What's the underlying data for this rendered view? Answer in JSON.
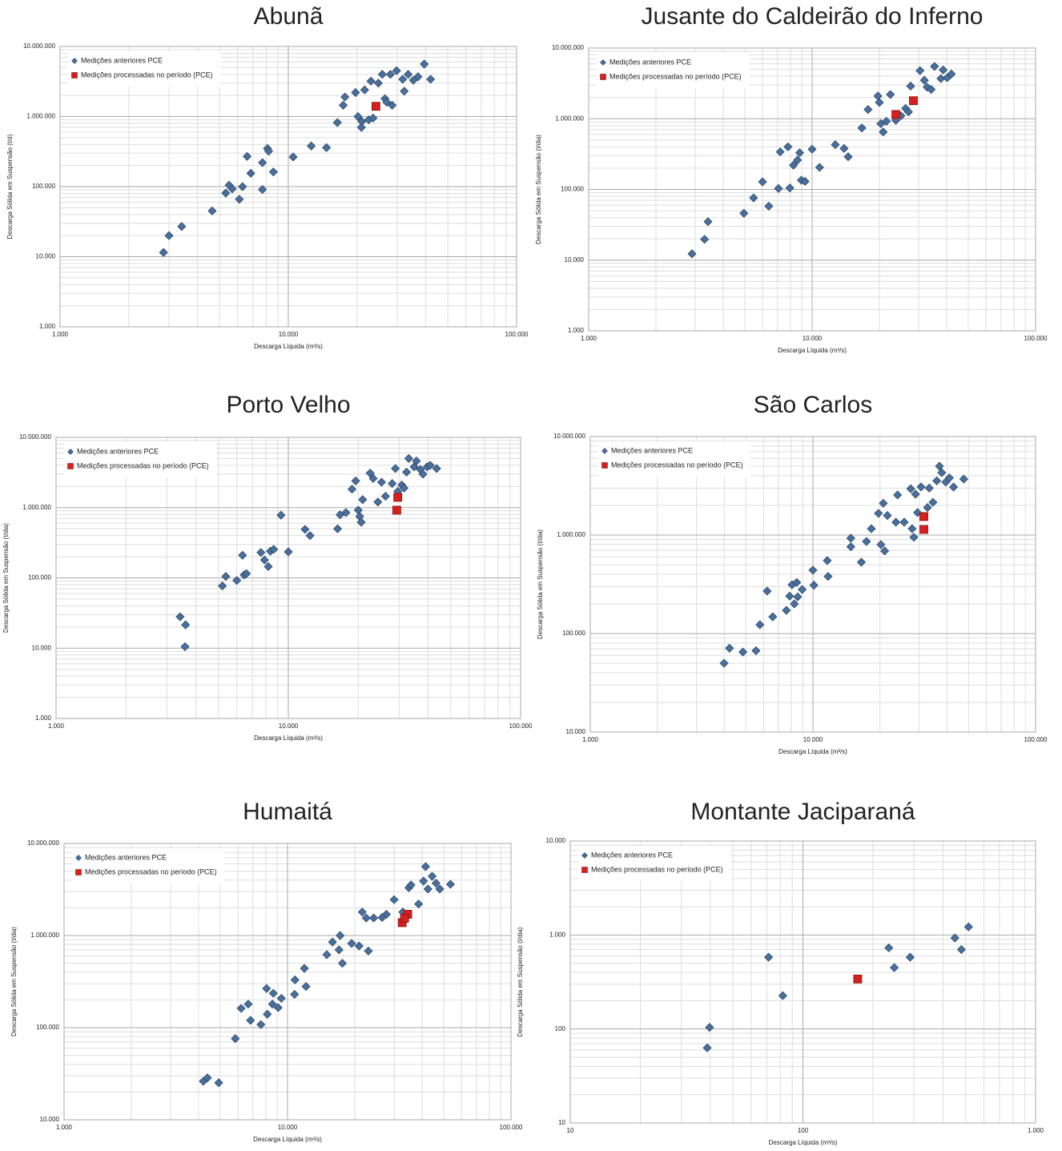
{
  "chart_data": [
    {
      "type": "scatter",
      "title": "Abunã",
      "x_label": "Descarga Líquida (m³/s)",
      "y_label": "Descarga Sólida em Suspensão (t/d)",
      "log_x": true,
      "log_y": true,
      "grid": true,
      "legend": "upper left",
      "xlim": [
        1000,
        100000
      ],
      "ylim": [
        1000,
        10000000
      ],
      "xticks": [
        {
          "value": 1000,
          "label": "1.000"
        },
        {
          "value": 10000,
          "label": "10.000"
        },
        {
          "value": 100000,
          "label": "100.000"
        }
      ],
      "yticks": [
        {
          "value": 1000,
          "label": "1.000"
        },
        {
          "value": 10000,
          "label": "10.000"
        },
        {
          "value": 100000,
          "label": "100.000"
        },
        {
          "value": 1000000,
          "label": "1.000.000"
        },
        {
          "value": 10000000,
          "label": "10.000.000"
        }
      ],
      "series": [
        {
          "name": "Medições anteriores PCE",
          "color": "#4a6f9a",
          "marker": "diamond",
          "x": [
            2840,
            3000,
            3410,
            4640,
            5320,
            5500,
            5680,
            6100,
            6300,
            6600,
            6850,
            7700,
            7700,
            8100,
            8200,
            8600,
            10500,
            12600,
            14700,
            16400,
            17400,
            17700,
            19700,
            20200,
            21000,
            20900,
            21600,
            22500,
            23000,
            23500,
            24800,
            25800,
            26500,
            27000,
            28000,
            28500,
            29800,
            31700,
            32200,
            33500,
            35300,
            37000,
            39400,
            42000
          ],
          "y": [
            11500,
            20000,
            27000,
            45000,
            81000,
            105000,
            93000,
            66000,
            100000,
            270000,
            155000,
            91000,
            220000,
            350000,
            320000,
            162000,
            265000,
            380000,
            360000,
            820000,
            1450000,
            1900000,
            2200000,
            1000000,
            850000,
            700000,
            2400000,
            900000,
            3200000,
            950000,
            3000000,
            4000000,
            1800000,
            1600000,
            4000000,
            1450000,
            4500000,
            3400000,
            2300000,
            4000000,
            3300000,
            3700000,
            5600000,
            3400000
          ]
        },
        {
          "name": "Medições processadas no período (PCE)",
          "color": "#d42020",
          "marker": "square",
          "x": [
            24200
          ],
          "y": [
            1400000
          ]
        }
      ]
    },
    {
      "type": "scatter",
      "title": "Jusante do Caldeirão do Inferno",
      "x_label": "Descarga Líquida (m³/s)",
      "y_label": "Descarga Sólida em Suspensão (t/dia)",
      "log_x": true,
      "log_y": true,
      "grid": true,
      "legend": "upper left",
      "xlim": [
        1000,
        100000
      ],
      "ylim": [
        1000,
        10000000
      ],
      "xticks": [
        {
          "value": 1000,
          "label": "1.000"
        },
        {
          "value": 10000,
          "label": "10.000"
        },
        {
          "value": 100000,
          "label": "100.000"
        }
      ],
      "yticks": [
        {
          "value": 1000,
          "label": "1.000"
        },
        {
          "value": 10000,
          "label": "10.000"
        },
        {
          "value": 100000,
          "label": "100.000"
        },
        {
          "value": 1000000,
          "label": "1.000.000"
        },
        {
          "value": 10000000,
          "label": "10.000.000"
        }
      ],
      "series": [
        {
          "name": "Medições anteriores PCE",
          "color": "#4a6f9a",
          "marker": "diamond",
          "x": [
            2900,
            3300,
            3420,
            4950,
            5470,
            6000,
            6400,
            7070,
            7200,
            7800,
            7950,
            8250,
            8600,
            8800,
            8950,
            9300,
            10000,
            10800,
            12700,
            13900,
            14500,
            16700,
            17800,
            19700,
            20000,
            20300,
            20800,
            21500,
            22400,
            23700,
            25000,
            26200,
            27000,
            27600,
            30400,
            31800,
            32700,
            34100,
            35300,
            37700,
            38600,
            40200,
            42000
          ],
          "y": [
            12300,
            19700,
            35000,
            46000,
            76000,
            128000,
            58000,
            103000,
            340000,
            400000,
            105000,
            220000,
            260000,
            330000,
            135000,
            130000,
            370000,
            205000,
            430000,
            380000,
            290000,
            740000,
            1350000,
            2100000,
            1700000,
            850000,
            650000,
            920000,
            2200000,
            950000,
            1100000,
            1400000,
            1250000,
            2900000,
            4800000,
            3500000,
            2800000,
            2600000,
            5500000,
            3700000,
            4900000,
            3800000,
            4300000
          ]
        },
        {
          "name": "Medições processadas no período (PCE)",
          "color": "#d42020",
          "marker": "square",
          "x": [
            23700,
            28400
          ],
          "y": [
            1150000,
            1800000
          ]
        }
      ]
    },
    {
      "type": "scatter",
      "title": "Porto Velho",
      "x_label": "Descarga Líquida (m³/s)",
      "y_label": "Descarga Sólida em Suspensão (t/dia)",
      "log_x": true,
      "log_y": true,
      "grid": true,
      "legend": "upper left",
      "xlim": [
        1000,
        100000
      ],
      "ylim": [
        1000,
        10000000
      ],
      "xticks": [
        {
          "value": 1000,
          "label": "1.000"
        },
        {
          "value": 10000,
          "label": "10.000"
        },
        {
          "value": 100000,
          "label": "100.000"
        }
      ],
      "yticks": [
        {
          "value": 1000,
          "label": "1.000"
        },
        {
          "value": 10000,
          "label": "10.000"
        },
        {
          "value": 100000,
          "label": "100.000"
        },
        {
          "value": 1000000,
          "label": "1.000.000"
        },
        {
          "value": 10000000,
          "label": "10.000.000"
        }
      ],
      "series": [
        {
          "name": "Medições anteriores PCE",
          "color": "#4a6f9a",
          "marker": "diamond",
          "x": [
            3420,
            3610,
            3590,
            5200,
            5380,
            6000,
            6350,
            6450,
            6600,
            7620,
            7900,
            8200,
            8370,
            8650,
            9300,
            10000,
            11800,
            12400,
            16300,
            16700,
            17700,
            18800,
            19500,
            20000,
            20300,
            20600,
            20900,
            22500,
            23200,
            24300,
            25200,
            26200,
            28000,
            28900,
            29600,
            30800,
            31500,
            32300,
            33000,
            34800,
            35600,
            37000,
            38000,
            39600,
            40800,
            43500
          ],
          "y": [
            28000,
            21500,
            10500,
            77000,
            105000,
            92000,
            210000,
            110000,
            115000,
            230000,
            180000,
            145000,
            240000,
            255000,
            780000,
            235000,
            490000,
            400000,
            500000,
            790000,
            850000,
            1830000,
            2400000,
            920000,
            750000,
            620000,
            1300000,
            3100000,
            2600000,
            1200000,
            2300000,
            1450000,
            2200000,
            3600000,
            1700000,
            2100000,
            1900000,
            3200000,
            5000000,
            3800000,
            4600000,
            3500000,
            3000000,
            3800000,
            4000000,
            3600000
          ]
        },
        {
          "name": "Medições processadas no período (PCE)",
          "color": "#d42020",
          "marker": "square",
          "x": [
            29600,
            29300
          ],
          "y": [
            1400000,
            920000
          ]
        }
      ]
    },
    {
      "type": "scatter",
      "title": "São Carlos",
      "x_label": "Descarga Líquida (m³/s)",
      "y_label": "Descarga Sólida em Suspensão (t/dia)",
      "log_x": true,
      "log_y": true,
      "grid": true,
      "legend": "upper left",
      "xlim": [
        1000,
        100000
      ],
      "ylim": [
        10000,
        10000000
      ],
      "xticks": [
        {
          "value": 1000,
          "label": "1.000"
        },
        {
          "value": 10000,
          "label": "10.000"
        },
        {
          "value": 100000,
          "label": "100.000"
        }
      ],
      "yticks": [
        {
          "value": 10000,
          "label": "10.000"
        },
        {
          "value": 100000,
          "label": "100.000"
        },
        {
          "value": 1000000,
          "label": "1.000.000"
        },
        {
          "value": 10000000,
          "label": "10.000.000"
        }
      ],
      "series": [
        {
          "name": "Medições anteriores PCE",
          "color": "#4a6f9a",
          "marker": "diamond",
          "x": [
            3990,
            4220,
            4850,
            5550,
            5780,
            6230,
            6600,
            7600,
            7860,
            8060,
            8250,
            8540,
            8460,
            8950,
            10000,
            10100,
            11600,
            11700,
            14800,
            14800,
            16500,
            17400,
            18300,
            19700,
            20200,
            20700,
            21000,
            21600,
            23600,
            24000,
            25700,
            27500,
            27900,
            28400,
            28900,
            29500,
            30600,
            32700,
            33300,
            34600,
            36000,
            37000,
            37900,
            39500,
            41000,
            42800,
            47600
          ],
          "y": [
            50000,
            71000,
            65000,
            67000,
            123000,
            270000,
            148000,
            172000,
            240000,
            313000,
            200000,
            236000,
            330000,
            280000,
            440000,
            310000,
            550000,
            380000,
            930000,
            760000,
            530000,
            860000,
            1160000,
            1660000,
            800000,
            2100000,
            690000,
            1580000,
            1350000,
            2550000,
            1350000,
            2950000,
            1160000,
            950000,
            2600000,
            1690000,
            3080000,
            1900000,
            3000000,
            2150000,
            3550000,
            5000000,
            4300000,
            3450000,
            3800000,
            3070000,
            3700000
          ]
        },
        {
          "name": "Medições processadas no período (PCE)",
          "color": "#d42020",
          "marker": "square",
          "x": [
            31500,
            31500
          ],
          "y": [
            1540000,
            1140000
          ]
        }
      ]
    },
    {
      "type": "scatter",
      "title": "Humaitá",
      "x_label": "Descarga Líquida (m³/s)",
      "y_label": "Descarga Sólida em Suspensão (t/dia)",
      "log_x": true,
      "log_y": true,
      "grid": true,
      "legend": "upper left",
      "xlim": [
        1000,
        100000
      ],
      "ylim": [
        10000,
        10000000
      ],
      "xticks": [
        {
          "value": 1000,
          "label": "1.000"
        },
        {
          "value": 10000,
          "label": "10.000"
        },
        {
          "value": 100000,
          "label": "100.000"
        }
      ],
      "yticks": [
        {
          "value": 10000,
          "label": "10.000"
        },
        {
          "value": 100000,
          "label": "100.000"
        },
        {
          "value": 1000000,
          "label": "1.000.000"
        },
        {
          "value": 10000000,
          "label": "10.000.000"
        }
      ],
      "series": [
        {
          "name": "Medições anteriores PCE",
          "color": "#4a6f9a",
          "marker": "diamond",
          "x": [
            4200,
            4380,
            4920,
            5840,
            6200,
            6670,
            6830,
            7600,
            8060,
            8120,
            8560,
            8640,
            9080,
            9380,
            10750,
            10800,
            11900,
            12100,
            14990,
            15900,
            17000,
            17200,
            17600,
            19350,
            20900,
            21600,
            22500,
            23000,
            24300,
            26500,
            27700,
            30000,
            32800,
            34900,
            35700,
            38600,
            40600,
            41500,
            42500,
            44400,
            46200,
            48000,
            53600
          ],
          "y": [
            26200,
            28500,
            25200,
            76000,
            162000,
            180000,
            120000,
            108000,
            266000,
            140000,
            180000,
            236000,
            165000,
            208000,
            230000,
            330000,
            440000,
            280000,
            620000,
            850000,
            700000,
            1000000,
            500000,
            820000,
            770000,
            1800000,
            1550000,
            680000,
            1550000,
            1570000,
            1700000,
            2450000,
            1800000,
            3300000,
            3540000,
            2200000,
            3900000,
            5600000,
            3200000,
            4400000,
            3700000,
            3200000,
            3600000
          ]
        },
        {
          "name": "Medições processadas no período (PCE)",
          "color": "#d42020",
          "marker": "square",
          "x": [
            32600,
            34500,
            33400
          ],
          "y": [
            1380000,
            1700000,
            1540000
          ]
        }
      ]
    },
    {
      "type": "scatter",
      "title": "Montante Jaciparaná",
      "x_label": "Descarga Líquida (m³/s)",
      "y_label": "Descarga Sólida em Suspensão (t/dia)",
      "log_x": true,
      "log_y": true,
      "grid": true,
      "legend": "upper left",
      "xlim": [
        10,
        1000
      ],
      "ylim": [
        10,
        10000
      ],
      "xticks": [
        10,
        100,
        {
          "value": 1000,
          "label": "1.000"
        }
      ],
      "yticks": [
        10,
        100,
        {
          "value": 1000,
          "label": "1.000"
        },
        {
          "value": 10000,
          "label": "10.000"
        }
      ],
      "series": [
        {
          "name": "Medições anteriores PCE",
          "color": "#4a6f9a",
          "marker": "diamond",
          "x": [
            38.8,
            39.7,
            71.2,
            82,
            234,
            247,
            289,
            450,
            480,
            515
          ],
          "y": [
            63,
            104,
            580,
            226,
            730,
            450,
            580,
            930,
            700,
            1220
          ]
        },
        {
          "name": "Medições processadas no período (PCE)",
          "color": "#d42020",
          "marker": "square",
          "x": [
            172
          ],
          "y": [
            340
          ]
        }
      ]
    }
  ]
}
